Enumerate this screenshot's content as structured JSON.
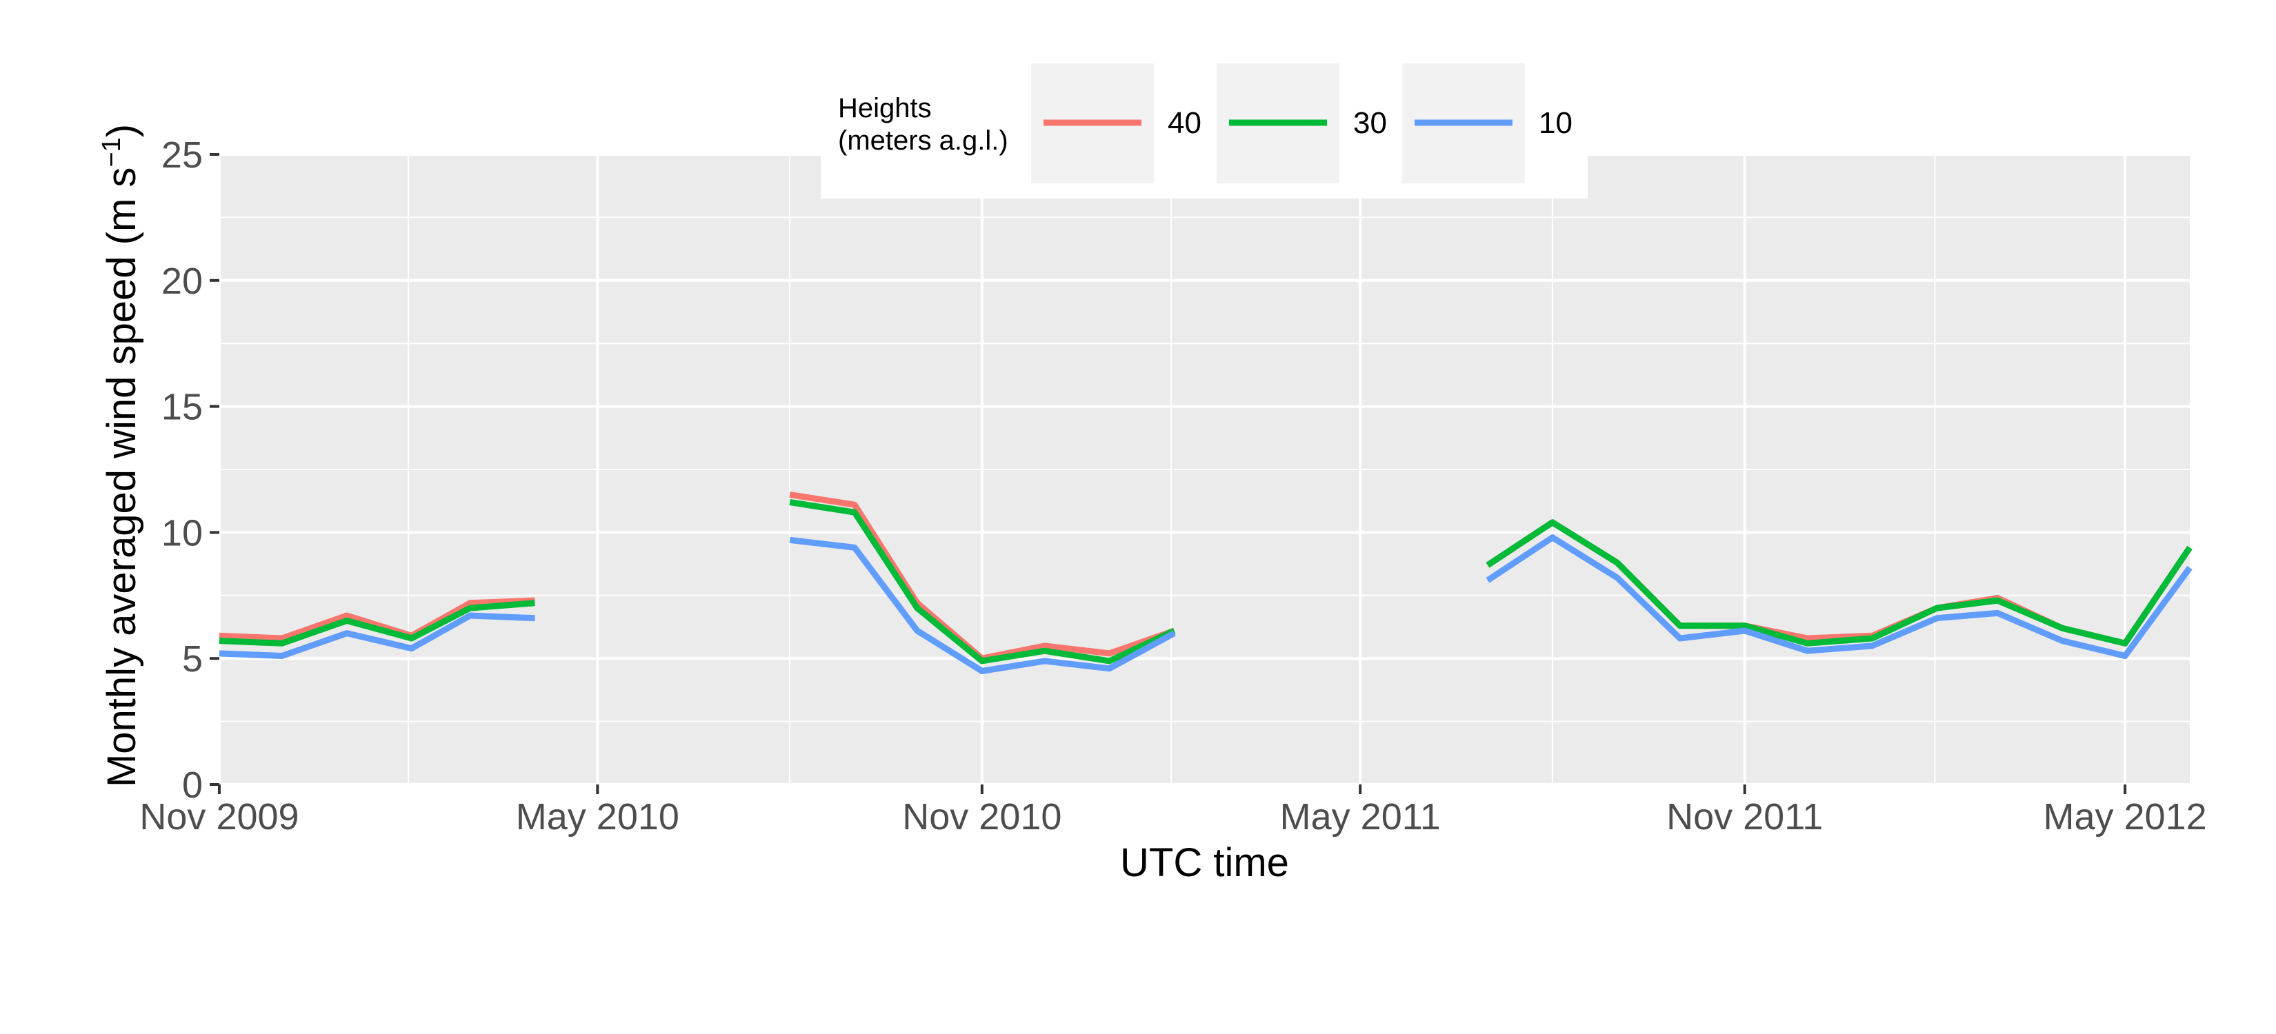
{
  "chart_data": {
    "type": "line",
    "xlabel": "UTC time",
    "ylabel": "Monthly averaged wind speed (m s",
    "ylabel_superscript": "−1",
    "ylabel_close": ")",
    "ylim": [
      0,
      25
    ],
    "yticks": [
      0,
      5,
      10,
      15,
      20,
      25
    ],
    "ytick_labels": [
      "0",
      "5",
      "10",
      "15",
      "20",
      "25"
    ],
    "xlim": [
      "2009-11-01",
      "2012-06-01"
    ],
    "xticks": [
      "2009-11-01",
      "2010-05-01",
      "2010-11-01",
      "2011-05-01",
      "2011-11-01",
      "2012-05-01"
    ],
    "xtick_labels": [
      "Nov 2009",
      "May 2010",
      "Nov 2010",
      "May 2011",
      "Nov 2011",
      "May 2012"
    ],
    "grid": true,
    "legend": {
      "title_line1": "Heights",
      "title_line2": "(meters a.g.l.)",
      "placement": "top",
      "entries": [
        "40",
        "30",
        "10"
      ]
    },
    "series": [
      {
        "name": "40",
        "color": "#F8766D",
        "points": [
          [
            "2009-11-01",
            5.9
          ],
          [
            "2009-12-01",
            5.8
          ],
          [
            "2010-01-01",
            6.7
          ],
          [
            "2010-02-01",
            5.9
          ],
          [
            "2010-03-01",
            7.2
          ],
          [
            "2010-04-01",
            7.3
          ],
          null,
          [
            "2010-08-01",
            11.5
          ],
          [
            "2010-09-01",
            11.1
          ],
          [
            "2010-10-01",
            7.2
          ],
          [
            "2010-11-01",
            5.0
          ],
          [
            "2010-12-01",
            5.5
          ],
          [
            "2011-01-01",
            5.2
          ],
          [
            "2011-02-01",
            6.1
          ],
          null,
          [
            "2011-07-01",
            8.7
          ],
          [
            "2011-08-01",
            10.4
          ],
          [
            "2011-09-01",
            8.8
          ],
          [
            "2011-10-01",
            6.3
          ],
          [
            "2011-11-01",
            6.3
          ],
          [
            "2011-12-01",
            5.8
          ],
          [
            "2012-01-01",
            5.9
          ],
          [
            "2012-02-01",
            7.0
          ],
          [
            "2012-03-01",
            7.4
          ],
          [
            "2012-04-01",
            6.2
          ],
          [
            "2012-05-01",
            5.6
          ],
          [
            "2012-06-01",
            9.4
          ]
        ]
      },
      {
        "name": "30",
        "color": "#00BA38",
        "points": [
          [
            "2009-11-01",
            5.7
          ],
          [
            "2009-12-01",
            5.6
          ],
          [
            "2010-01-01",
            6.5
          ],
          [
            "2010-02-01",
            5.8
          ],
          [
            "2010-03-01",
            7.0
          ],
          [
            "2010-04-01",
            7.2
          ],
          null,
          [
            "2010-08-01",
            11.2
          ],
          [
            "2010-09-01",
            10.8
          ],
          [
            "2010-10-01",
            7.0
          ],
          [
            "2010-11-01",
            4.9
          ],
          [
            "2010-12-01",
            5.3
          ],
          [
            "2011-01-01",
            4.9
          ],
          [
            "2011-02-01",
            6.1
          ],
          null,
          [
            "2011-07-01",
            8.7
          ],
          [
            "2011-08-01",
            10.4
          ],
          [
            "2011-09-01",
            8.8
          ],
          [
            "2011-10-01",
            6.3
          ],
          [
            "2011-11-01",
            6.3
          ],
          [
            "2011-12-01",
            5.6
          ],
          [
            "2012-01-01",
            5.8
          ],
          [
            "2012-02-01",
            7.0
          ],
          [
            "2012-03-01",
            7.3
          ],
          [
            "2012-04-01",
            6.2
          ],
          [
            "2012-05-01",
            5.6
          ],
          [
            "2012-06-01",
            9.4
          ]
        ]
      },
      {
        "name": "10",
        "color": "#619CFF",
        "points": [
          [
            "2009-11-01",
            5.2
          ],
          [
            "2009-12-01",
            5.1
          ],
          [
            "2010-01-01",
            6.0
          ],
          [
            "2010-02-01",
            5.4
          ],
          [
            "2010-03-01",
            6.7
          ],
          [
            "2010-04-01",
            6.6
          ],
          null,
          [
            "2010-08-01",
            9.7
          ],
          [
            "2010-09-01",
            9.4
          ],
          [
            "2010-10-01",
            6.1
          ],
          [
            "2010-11-01",
            4.5
          ],
          [
            "2010-12-01",
            4.9
          ],
          [
            "2011-01-01",
            4.6
          ],
          [
            "2011-02-01",
            6.0
          ],
          null,
          [
            "2011-07-01",
            8.1
          ],
          [
            "2011-08-01",
            9.8
          ],
          [
            "2011-09-01",
            8.2
          ],
          [
            "2011-10-01",
            5.8
          ],
          [
            "2011-11-01",
            6.1
          ],
          [
            "2011-12-01",
            5.3
          ],
          [
            "2012-01-01",
            5.5
          ],
          [
            "2012-02-01",
            6.6
          ],
          [
            "2012-03-01",
            6.8
          ],
          [
            "2012-04-01",
            5.7
          ],
          [
            "2012-05-01",
            5.1
          ],
          [
            "2012-06-01",
            8.6
          ]
        ]
      }
    ]
  }
}
